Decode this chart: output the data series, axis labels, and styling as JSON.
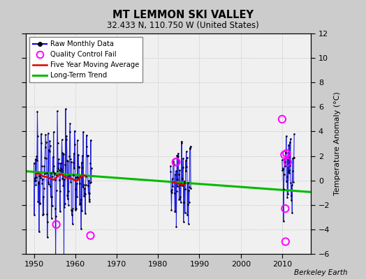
{
  "title": "MT LEMMON SKI VALLEY",
  "subtitle": "32.433 N, 110.750 W (United States)",
  "ylabel": "Temperature Anomaly (°C)",
  "credit": "Berkeley Earth",
  "xlim": [
    1948,
    2017
  ],
  "ylim": [
    -6,
    12
  ],
  "yticks": [
    -6,
    -4,
    -2,
    0,
    2,
    4,
    6,
    8,
    10,
    12
  ],
  "xticks": [
    1950,
    1960,
    1970,
    1980,
    1990,
    2000,
    2010
  ],
  "bg_color": "#cccccc",
  "plot_bg": "#f5f5f5",
  "trend_line": {
    "x": [
      1948,
      2017
    ],
    "y": [
      0.75,
      -0.95
    ]
  },
  "colors": {
    "blue_line": "#0000dd",
    "blue_fill": "#aaaaff",
    "red_line": "#dd0000",
    "green_trend": "#00bb00",
    "magenta_qc": "#ff00ff",
    "bg": "#cccccc",
    "plot_bg": "#f0f0f0"
  }
}
